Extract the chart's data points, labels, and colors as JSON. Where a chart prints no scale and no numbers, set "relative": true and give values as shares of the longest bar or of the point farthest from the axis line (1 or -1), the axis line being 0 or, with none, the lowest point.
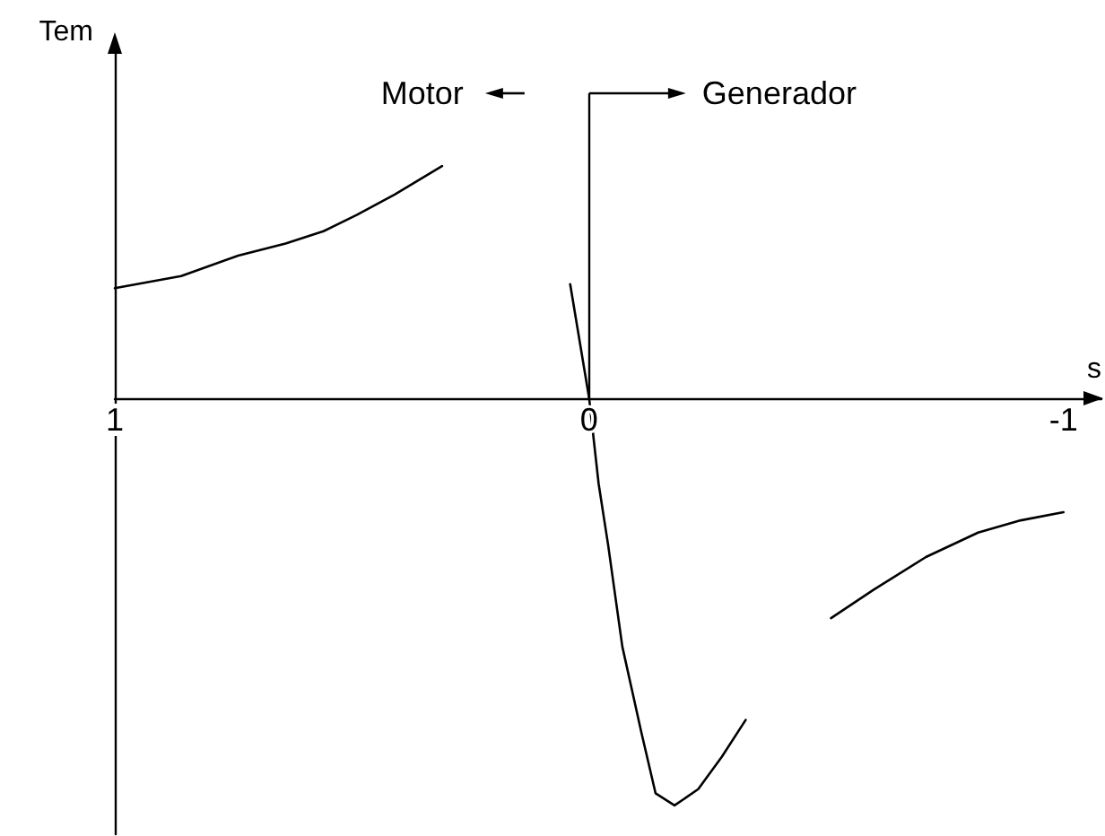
{
  "chart_data": {
    "type": "line",
    "xlabel": "s",
    "ylabel": "Tem",
    "relative": true,
    "tick_labels": "x",
    "xlim": [
      1,
      -1.08
    ],
    "xticks": [
      1,
      0,
      -1
    ],
    "series": [
      {
        "color": "#000000",
        "x": [
          1,
          0.86,
          0.74,
          0.64,
          0.56,
          0.49,
          0.41,
          0.31
        ],
        "values": [
          0.27,
          0.3,
          0.35,
          0.38,
          0.41,
          0.45,
          0.5,
          0.57
        ]
      },
      {
        "color": "#000000",
        "x": [
          0.04,
          0,
          -0.02,
          -0.04,
          -0.07,
          -0.11,
          -0.14,
          -0.18,
          -0.23,
          -0.28,
          -0.33
        ],
        "values": [
          0.28,
          0,
          -0.21,
          -0.36,
          -0.61,
          -0.82,
          -0.97,
          -1,
          -0.96,
          -0.88,
          -0.79
        ]
      },
      {
        "color": "#000000",
        "x": [
          -0.51,
          -0.6,
          -0.71,
          -0.82,
          -0.91,
          -1
        ],
        "values": [
          -0.54,
          -0.47,
          -0.39,
          -0.33,
          -0.3,
          -0.28
        ]
      }
    ],
    "ref_lines": [
      {
        "axis": "x",
        "value": 0
      }
    ],
    "annotations": [
      "Motor",
      "Generador"
    ]
  }
}
